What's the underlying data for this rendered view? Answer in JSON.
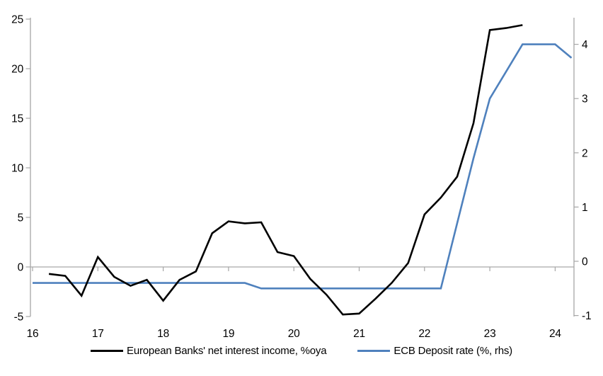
{
  "chart_data": {
    "type": "line",
    "title": "",
    "x_axis": {
      "ticks": [
        "16",
        "17",
        "18",
        "19",
        "20",
        "21",
        "22",
        "23",
        "24"
      ],
      "tick_values": [
        16,
        17,
        18,
        19,
        20,
        21,
        22,
        23,
        24
      ],
      "range": [
        16,
        24.3
      ]
    },
    "left_axis": {
      "ticks": [
        "25",
        "20",
        "15",
        "10",
        "5",
        "0",
        "-5"
      ],
      "tick_values": [
        25,
        20,
        15,
        10,
        5,
        0,
        -5
      ],
      "range": [
        -5,
        25.1
      ]
    },
    "right_axis": {
      "ticks": [
        "4",
        "3",
        "2",
        "1",
        "0",
        "-1"
      ],
      "tick_values": [
        4,
        3,
        2,
        1,
        0,
        -1
      ],
      "range": [
        -1,
        4.5
      ]
    },
    "gridline_value": 0,
    "grid": "zero-line-only",
    "legend_position": "bottom-center",
    "series": [
      {
        "name": "European Banks' net interest income, %oya",
        "axis": "left",
        "color": "#000000",
        "points": [
          [
            16.25,
            -0.7
          ],
          [
            16.5,
            -0.9
          ],
          [
            16.75,
            -2.9
          ],
          [
            17.0,
            1.0
          ],
          [
            17.25,
            -1.0
          ],
          [
            17.5,
            -1.9
          ],
          [
            17.75,
            -1.3
          ],
          [
            18.0,
            -3.4
          ],
          [
            18.25,
            -1.3
          ],
          [
            18.5,
            -0.45
          ],
          [
            18.75,
            3.4
          ],
          [
            19.0,
            4.6
          ],
          [
            19.25,
            4.4
          ],
          [
            19.5,
            4.5
          ],
          [
            19.75,
            1.5
          ],
          [
            20.0,
            1.1
          ],
          [
            20.25,
            -1.2
          ],
          [
            20.5,
            -2.8
          ],
          [
            20.75,
            -4.8
          ],
          [
            21.0,
            -4.7
          ],
          [
            21.25,
            -3.2
          ],
          [
            21.5,
            -1.6
          ],
          [
            21.75,
            0.4
          ],
          [
            22.0,
            5.3
          ],
          [
            22.25,
            7.0
          ],
          [
            22.5,
            9.1
          ],
          [
            22.75,
            14.5
          ],
          [
            23.0,
            23.9
          ],
          [
            23.25,
            24.1
          ],
          [
            23.5,
            24.4
          ]
        ]
      },
      {
        "name": "ECB Deposit rate (%, rhs)",
        "axis": "right",
        "color": "#4f81bd",
        "points": [
          [
            16.0,
            -0.4
          ],
          [
            19.25,
            -0.4
          ],
          [
            19.5,
            -0.5
          ],
          [
            22.25,
            -0.5
          ],
          [
            22.5,
            0.7
          ],
          [
            22.75,
            1.9
          ],
          [
            23.0,
            3.0
          ],
          [
            23.25,
            3.5
          ],
          [
            23.5,
            4.0
          ],
          [
            24.0,
            4.0
          ],
          [
            24.25,
            3.75
          ]
        ]
      }
    ]
  },
  "colors": {
    "axis": "#a6a6a6",
    "gridline": "#a9a9a9",
    "text": "#000000",
    "background": "#ffffff",
    "series_black": "#000000",
    "series_blue": "#4f81bd"
  }
}
